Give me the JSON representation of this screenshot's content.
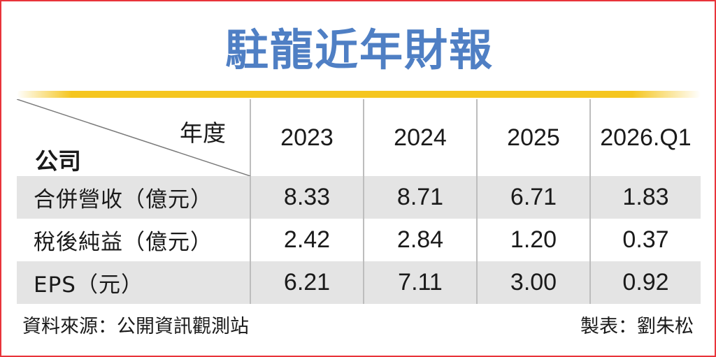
{
  "title": "駐龍近年財報",
  "table": {
    "corner": {
      "column_header": "年度",
      "row_header": "公司"
    },
    "years": [
      "2023",
      "2024",
      "2025",
      "2026.Q1"
    ],
    "rows": [
      {
        "label": "合併營收（億元）",
        "values": [
          "8.33",
          "8.71",
          "6.71",
          "1.83"
        ]
      },
      {
        "label": "稅後純益（億元）",
        "values": [
          "2.42",
          "2.84",
          "1.20",
          "0.37"
        ]
      },
      {
        "label": "EPS（元）",
        "values": [
          "6.21",
          "7.11",
          "3.00",
          "0.92"
        ]
      }
    ]
  },
  "footer": {
    "source": "資料來源：公開資訊觀測站",
    "credit": "製表：劉朱松"
  },
  "colors": {
    "title": "#4f7fc4",
    "border": "#e8343a",
    "accent_line": "#f5c61f",
    "row_shade": "#e4e4e4"
  }
}
